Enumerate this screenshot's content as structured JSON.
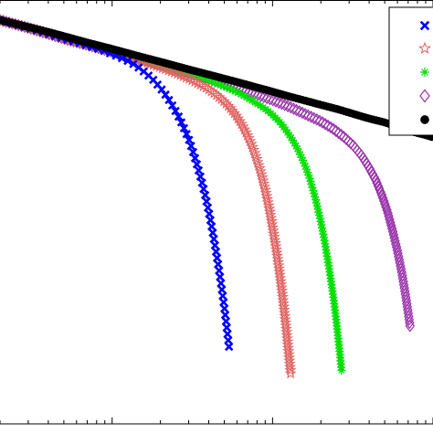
{
  "chart_data": {
    "type": "scatter",
    "title": "",
    "xlabel": "",
    "ylabel": "",
    "xscale": "log",
    "yscale": "log",
    "xlim": [
      0.2,
      100
    ],
    "ylim": [
      0.0001,
      10
    ],
    "grid": false,
    "legend_position": "top-right",
    "series": [
      {
        "marker": "x",
        "color": "#0000ff",
        "points": [
          [
            0.2,
            5.8
          ],
          [
            0.3,
            4.7
          ],
          [
            0.4,
            4.0
          ],
          [
            0.5,
            3.5
          ],
          [
            0.6,
            3.2
          ],
          [
            0.7,
            2.9
          ],
          [
            0.8,
            2.7
          ],
          [
            0.9,
            2.5
          ],
          [
            1.0,
            2.3
          ],
          [
            1.2,
            2.0
          ],
          [
            1.4,
            1.7
          ],
          [
            1.6,
            1.4
          ],
          [
            1.8,
            1.15
          ],
          [
            2.0,
            0.92
          ],
          [
            2.2,
            0.72
          ],
          [
            2.4,
            0.55
          ],
          [
            2.6,
            0.42
          ],
          [
            2.8,
            0.31
          ],
          [
            3.0,
            0.23
          ],
          [
            3.2,
            0.16
          ],
          [
            3.4,
            0.11
          ],
          [
            3.6,
            0.075
          ],
          [
            3.8,
            0.05
          ],
          [
            4.0,
            0.032
          ],
          [
            4.2,
            0.02
          ],
          [
            4.4,
            0.012
          ],
          [
            4.6,
            0.0072
          ],
          [
            4.8,
            0.0042
          ],
          [
            5.0,
            0.0024
          ],
          [
            5.2,
            0.0013
          ],
          [
            5.4,
            0.0007
          ]
        ]
      },
      {
        "marker": "star",
        "color": "#e06060",
        "points": [
          [
            0.2,
            5.8
          ],
          [
            0.3,
            4.7
          ],
          [
            0.4,
            4.0
          ],
          [
            0.5,
            3.5
          ],
          [
            0.7,
            2.95
          ],
          [
            1.0,
            2.45
          ],
          [
            1.3,
            2.1
          ],
          [
            1.6,
            1.85
          ],
          [
            2.0,
            1.6
          ],
          [
            2.5,
            1.37
          ],
          [
            3.0,
            1.18
          ],
          [
            3.5,
            1.02
          ],
          [
            4.0,
            0.88
          ],
          [
            4.5,
            0.75
          ],
          [
            5.0,
            0.63
          ],
          [
            5.5,
            0.52
          ],
          [
            6.0,
            0.42
          ],
          [
            6.5,
            0.33
          ],
          [
            7.0,
            0.25
          ],
          [
            7.5,
            0.185
          ],
          [
            8.0,
            0.13
          ],
          [
            8.5,
            0.09
          ],
          [
            9.0,
            0.058
          ],
          [
            9.5,
            0.036
          ],
          [
            10,
            0.021
          ],
          [
            10.5,
            0.012
          ],
          [
            11,
            0.0065
          ],
          [
            11.5,
            0.0034
          ],
          [
            12,
            0.0017
          ],
          [
            12.5,
            0.0008
          ],
          [
            13,
            0.00037
          ]
        ]
      },
      {
        "marker": "plus",
        "color": "#00e000",
        "points": [
          [
            0.2,
            5.8
          ],
          [
            0.3,
            4.7
          ],
          [
            0.4,
            4.0
          ],
          [
            0.5,
            3.5
          ],
          [
            0.7,
            2.95
          ],
          [
            1.0,
            2.45
          ],
          [
            1.5,
            2.0
          ],
          [
            2.0,
            1.7
          ],
          [
            3.0,
            1.35
          ],
          [
            4.0,
            1.12
          ],
          [
            5.0,
            0.95
          ],
          [
            6.0,
            0.82
          ],
          [
            7.0,
            0.7
          ],
          [
            8.0,
            0.6
          ],
          [
            9.0,
            0.52
          ],
          [
            10,
            0.44
          ],
          [
            11,
            0.37
          ],
          [
            12,
            0.3
          ],
          [
            13,
            0.24
          ],
          [
            14,
            0.19
          ],
          [
            15,
            0.145
          ],
          [
            16,
            0.11
          ],
          [
            17,
            0.08
          ],
          [
            18,
            0.055
          ],
          [
            19,
            0.037
          ],
          [
            20,
            0.024
          ],
          [
            21,
            0.015
          ],
          [
            22,
            0.009
          ],
          [
            23,
            0.0052
          ],
          [
            24,
            0.003
          ],
          [
            25,
            0.0016
          ],
          [
            26,
            0.0008
          ],
          [
            27,
            0.0004
          ]
        ]
      },
      {
        "marker": "diamond",
        "color": "#9933aa",
        "points": [
          [
            0.2,
            5.8
          ],
          [
            0.3,
            4.7
          ],
          [
            0.4,
            4.0
          ],
          [
            0.5,
            3.5
          ],
          [
            0.7,
            2.95
          ],
          [
            1.0,
            2.45
          ],
          [
            1.5,
            2.0
          ],
          [
            2.0,
            1.72
          ],
          [
            3.0,
            1.38
          ],
          [
            4.0,
            1.17
          ],
          [
            6.0,
            0.92
          ],
          [
            8.0,
            0.77
          ],
          [
            10,
            0.66
          ],
          [
            13,
            0.54
          ],
          [
            16,
            0.45
          ],
          [
            20,
            0.37
          ],
          [
            24,
            0.3
          ],
          [
            28,
            0.24
          ],
          [
            32,
            0.19
          ],
          [
            36,
            0.145
          ],
          [
            40,
            0.105
          ],
          [
            44,
            0.075
          ],
          [
            48,
            0.05
          ],
          [
            52,
            0.032
          ],
          [
            56,
            0.019
          ],
          [
            60,
            0.011
          ],
          [
            64,
            0.006
          ],
          [
            68,
            0.003
          ],
          [
            72,
            0.0014
          ]
        ]
      },
      {
        "marker": "dot",
        "color": "#000000",
        "points": [
          [
            0.2,
            5.8
          ],
          [
            0.3,
            4.8
          ],
          [
            0.4,
            4.2
          ],
          [
            0.5,
            3.75
          ],
          [
            0.7,
            3.15
          ],
          [
            1.0,
            2.65
          ],
          [
            1.5,
            2.15
          ],
          [
            2.0,
            1.87
          ],
          [
            3.0,
            1.52
          ],
          [
            4.0,
            1.32
          ],
          [
            6.0,
            1.08
          ],
          [
            8.0,
            0.93
          ],
          [
            10,
            0.83
          ],
          [
            13,
            0.72
          ],
          [
            16,
            0.65
          ],
          [
            20,
            0.58
          ],
          [
            25,
            0.52
          ],
          [
            30,
            0.47
          ],
          [
            35,
            0.43
          ],
          [
            40,
            0.4
          ],
          [
            50,
            0.36
          ],
          [
            60,
            0.32
          ],
          [
            70,
            0.29
          ],
          [
            80,
            0.27
          ],
          [
            90,
            0.255
          ],
          [
            100,
            0.24
          ]
        ]
      }
    ]
  }
}
